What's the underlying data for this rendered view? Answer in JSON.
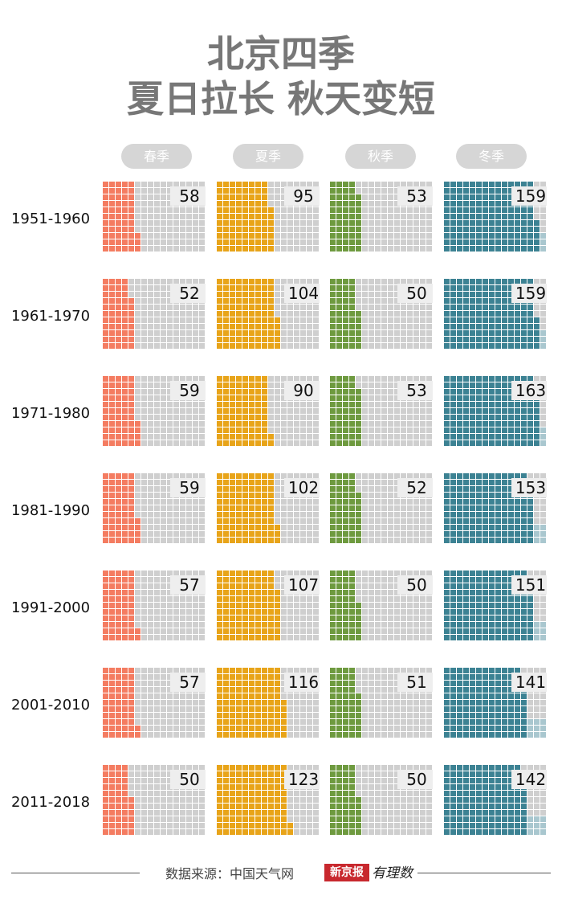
{
  "title_line1": "北京四季",
  "title_line2": "夏日拉长 秋天变短",
  "seasons": [
    "春季",
    "夏季",
    "秋季",
    "冬季"
  ],
  "source": "数据来源：中国天气网",
  "logo": {
    "box": "新京报",
    "text": "有理数",
    "brand_color": "#c8282e"
  },
  "colors": {
    "spring": "#f47c61",
    "summer": "#e8a419",
    "autumn": "#6e9a3f",
    "winter": "#3c8293",
    "empty": "#cfcfcf"
  },
  "chart_data": {
    "type": "waffle",
    "unit": "days",
    "categories": [
      "1951-1960",
      "1961-1970",
      "1971-1980",
      "1981-1990",
      "1991-2000",
      "2001-2010",
      "2011-2018"
    ],
    "series": [
      {
        "name": "春季",
        "values": [
          58,
          52,
          59,
          59,
          57,
          57,
          50
        ]
      },
      {
        "name": "夏季",
        "values": [
          95,
          104,
          90,
          102,
          107,
          116,
          123
        ]
      },
      {
        "name": "秋季",
        "values": [
          53,
          50,
          53,
          52,
          50,
          51,
          50
        ]
      },
      {
        "name": "冬季",
        "values": [
          159,
          159,
          163,
          153,
          151,
          141,
          142
        ]
      }
    ]
  }
}
